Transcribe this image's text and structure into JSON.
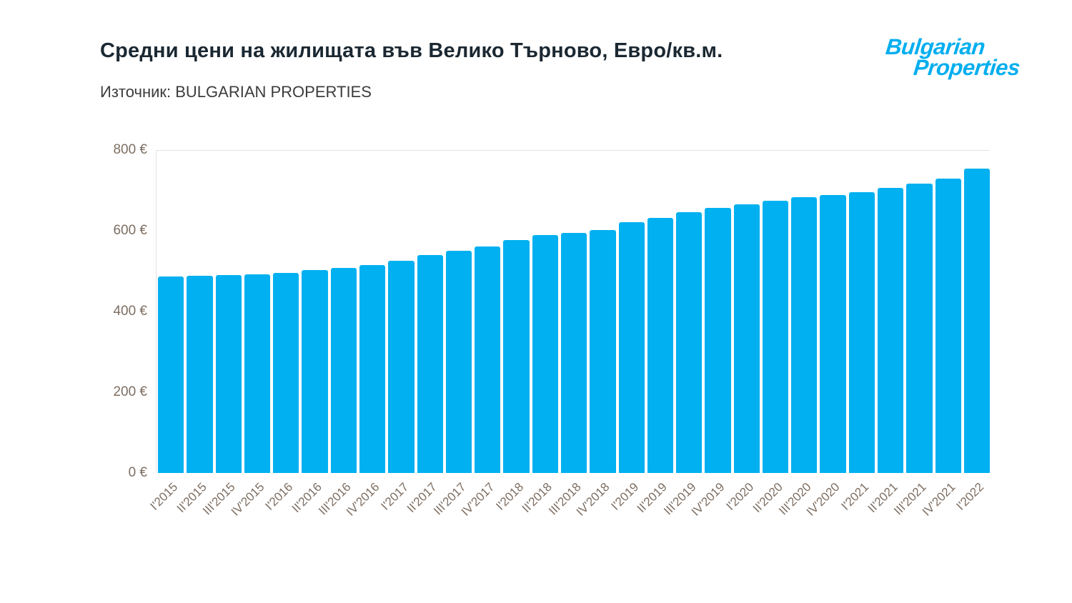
{
  "header": {
    "title": "Средни цени на жилищата във Велико Търново, Евро/кв.м.",
    "source": "Източник: BULGARIAN PROPERTIES"
  },
  "logo": {
    "line1": "Bulgarian",
    "line2": "Properties",
    "color": "#00aeef"
  },
  "chart_data": {
    "type": "bar",
    "title": "Средни цени на жилищата във Велико Търново, Евро/кв.м.",
    "subtitle": "Източник: BULGARIAN PROPERTIES",
    "categories": [
      "I'2015",
      "II'2015",
      "III'2015",
      "IV'2015",
      "I'2016",
      "II'2016",
      "III'2016",
      "IV'2016",
      "I'2017",
      "II'2017",
      "III'2017",
      "IV'2017",
      "I'2018",
      "II'2018",
      "III'2018",
      "IV'2018",
      "I'2019",
      "II'2019",
      "III'2019",
      "IV'2019",
      "I'2020",
      "II'2020",
      "III'2020",
      "IV'2020",
      "I'2021",
      "II'2021",
      "III'2021",
      "IV'2021",
      "I'2022"
    ],
    "values": [
      488,
      490,
      491,
      493,
      497,
      503,
      509,
      516,
      527,
      541,
      551,
      563,
      578,
      590,
      596,
      603,
      622,
      634,
      648,
      658,
      667,
      676,
      684,
      690,
      698,
      708,
      718,
      730,
      755
    ],
    "unit": "Евро/кв.м.",
    "xlabel": "",
    "ylabel": "",
    "ylim": [
      0,
      800
    ],
    "yticks": [
      0,
      200,
      400,
      600,
      800
    ],
    "ytick_suffix": " €",
    "grid": "top-line-and-left-axis-only",
    "legend": "none",
    "bar_color": "#00b0f0",
    "axis_label_color": "#7d6e62",
    "title_color": "#1b2832"
  }
}
